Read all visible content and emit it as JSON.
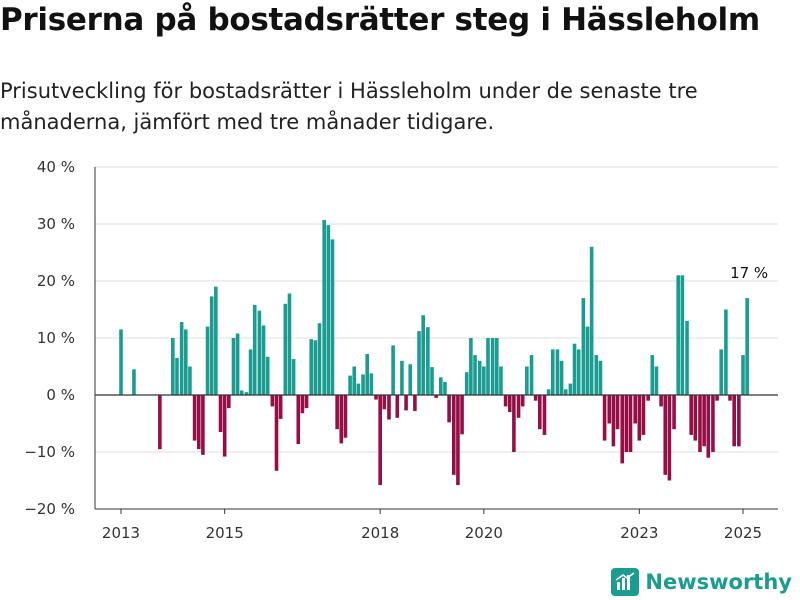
{
  "title": "Priserna på bostadsrätter steg i Hässleholm",
  "subtitle": "Prisutveckling för bostadsrätter i Hässleholm under de senaste tre månaderna, jämfört med tre månader tidigare.",
  "brand": {
    "name": "Newsworthy",
    "color": "#1a9c91"
  },
  "chart_data": {
    "type": "bar",
    "unit": "%",
    "y_ticks": [
      "40 %",
      "30 %",
      "20 %",
      "10 %",
      "0 %",
      "−10 %",
      "−20 %"
    ],
    "ylim": [
      -20,
      40
    ],
    "x_ticks": [
      "2013",
      "2015",
      "2018",
      "2020",
      "2023",
      "2025"
    ],
    "x_tick_years": [
      2013,
      2015,
      2018,
      2020,
      2023,
      2025
    ],
    "annotation": "17 %",
    "colors": {
      "positive": "#1a9c91",
      "negative": "#960e46",
      "axis": "#333333",
      "grid": "#dddddd"
    },
    "bars": [
      {
        "x": 2013.0,
        "value": 11.5
      },
      {
        "x": 2013.25,
        "value": 4.5
      },
      {
        "x": 2013.75,
        "value": -9.5
      },
      {
        "x": 2014.0,
        "value": 10.0
      },
      {
        "x": 2014.08,
        "value": 6.5
      },
      {
        "x": 2014.17,
        "value": 12.8
      },
      {
        "x": 2014.25,
        "value": 11.5
      },
      {
        "x": 2014.33,
        "value": 5.0
      },
      {
        "x": 2014.42,
        "value": -8.0
      },
      {
        "x": 2014.5,
        "value": -9.5
      },
      {
        "x": 2014.58,
        "value": -10.5
      },
      {
        "x": 2014.67,
        "value": 12.0
      },
      {
        "x": 2014.75,
        "value": 17.3
      },
      {
        "x": 2014.83,
        "value": 19.0
      },
      {
        "x": 2014.92,
        "value": -6.5
      },
      {
        "x": 2015.0,
        "value": -10.8
      },
      {
        "x": 2015.08,
        "value": -2.3
      },
      {
        "x": 2015.17,
        "value": 10.0
      },
      {
        "x": 2015.25,
        "value": 10.8
      },
      {
        "x": 2015.33,
        "value": 0.8
      },
      {
        "x": 2015.42,
        "value": 0.5
      },
      {
        "x": 2015.5,
        "value": 8.0
      },
      {
        "x": 2015.58,
        "value": 15.8
      },
      {
        "x": 2015.67,
        "value": 14.8
      },
      {
        "x": 2015.75,
        "value": 12.2
      },
      {
        "x": 2015.83,
        "value": 6.7
      },
      {
        "x": 2015.92,
        "value": -2.0
      },
      {
        "x": 2016.0,
        "value": -13.3
      },
      {
        "x": 2016.08,
        "value": -4.2
      },
      {
        "x": 2016.17,
        "value": 16.0
      },
      {
        "x": 2016.25,
        "value": 17.8
      },
      {
        "x": 2016.33,
        "value": 6.3
      },
      {
        "x": 2016.42,
        "value": -8.6
      },
      {
        "x": 2016.5,
        "value": -3.2
      },
      {
        "x": 2016.58,
        "value": -2.3
      },
      {
        "x": 2016.67,
        "value": 9.8
      },
      {
        "x": 2016.75,
        "value": 9.6
      },
      {
        "x": 2016.83,
        "value": 12.6
      },
      {
        "x": 2016.92,
        "value": 30.7
      },
      {
        "x": 2017.0,
        "value": 29.8
      },
      {
        "x": 2017.08,
        "value": 27.3
      },
      {
        "x": 2017.17,
        "value": -6.0
      },
      {
        "x": 2017.25,
        "value": -8.5
      },
      {
        "x": 2017.33,
        "value": -7.5
      },
      {
        "x": 2017.42,
        "value": 3.4
      },
      {
        "x": 2017.5,
        "value": 5.0
      },
      {
        "x": 2017.58,
        "value": 2.0
      },
      {
        "x": 2017.67,
        "value": 3.6
      },
      {
        "x": 2017.75,
        "value": 7.2
      },
      {
        "x": 2017.83,
        "value": 3.8
      },
      {
        "x": 2017.92,
        "value": -0.8
      },
      {
        "x": 2018.0,
        "value": -15.8
      },
      {
        "x": 2018.08,
        "value": -2.5
      },
      {
        "x": 2018.17,
        "value": -4.3
      },
      {
        "x": 2018.25,
        "value": 8.7
      },
      {
        "x": 2018.33,
        "value": -4.0
      },
      {
        "x": 2018.42,
        "value": 6.0
      },
      {
        "x": 2018.5,
        "value": -2.7
      },
      {
        "x": 2018.58,
        "value": 5.4
      },
      {
        "x": 2018.67,
        "value": -2.8
      },
      {
        "x": 2018.75,
        "value": 11.2
      },
      {
        "x": 2018.83,
        "value": 14.0
      },
      {
        "x": 2018.92,
        "value": 11.9
      },
      {
        "x": 2019.0,
        "value": 4.9
      },
      {
        "x": 2019.08,
        "value": -0.5
      },
      {
        "x": 2019.17,
        "value": 3.1
      },
      {
        "x": 2019.25,
        "value": 2.3
      },
      {
        "x": 2019.33,
        "value": -4.8
      },
      {
        "x": 2019.42,
        "value": -14.0
      },
      {
        "x": 2019.5,
        "value": -15.8
      },
      {
        "x": 2019.58,
        "value": -6.9
      },
      {
        "x": 2019.67,
        "value": 4.0
      },
      {
        "x": 2019.75,
        "value": 10.0
      },
      {
        "x": 2019.83,
        "value": 7.0
      },
      {
        "x": 2019.92,
        "value": 6.0
      },
      {
        "x": 2020.0,
        "value": 5.0
      },
      {
        "x": 2020.08,
        "value": 10.0
      },
      {
        "x": 2020.17,
        "value": 10.0
      },
      {
        "x": 2020.25,
        "value": 10.0
      },
      {
        "x": 2020.33,
        "value": 5.0
      },
      {
        "x": 2020.42,
        "value": -2.0
      },
      {
        "x": 2020.5,
        "value": -3.0
      },
      {
        "x": 2020.58,
        "value": -10.0
      },
      {
        "x": 2020.67,
        "value": -4.0
      },
      {
        "x": 2020.75,
        "value": -2.0
      },
      {
        "x": 2020.83,
        "value": 5.0
      },
      {
        "x": 2020.92,
        "value": 7.0
      },
      {
        "x": 2021.0,
        "value": -1.0
      },
      {
        "x": 2021.08,
        "value": -6.0
      },
      {
        "x": 2021.17,
        "value": -7.0
      },
      {
        "x": 2021.25,
        "value": 1.0
      },
      {
        "x": 2021.33,
        "value": 8.0
      },
      {
        "x": 2021.42,
        "value": 8.0
      },
      {
        "x": 2021.5,
        "value": 6.0
      },
      {
        "x": 2021.58,
        "value": 1.0
      },
      {
        "x": 2021.67,
        "value": 2.0
      },
      {
        "x": 2021.75,
        "value": 9.0
      },
      {
        "x": 2021.83,
        "value": 8.0
      },
      {
        "x": 2021.92,
        "value": 17.0
      },
      {
        "x": 2022.0,
        "value": 12.0
      },
      {
        "x": 2022.08,
        "value": 26.0
      },
      {
        "x": 2022.17,
        "value": 7.0
      },
      {
        "x": 2022.25,
        "value": 6.0
      },
      {
        "x": 2022.33,
        "value": -8.0
      },
      {
        "x": 2022.42,
        "value": -5.0
      },
      {
        "x": 2022.5,
        "value": -9.0
      },
      {
        "x": 2022.58,
        "value": -6.0
      },
      {
        "x": 2022.67,
        "value": -12.0
      },
      {
        "x": 2022.75,
        "value": -10.0
      },
      {
        "x": 2022.83,
        "value": -10.0
      },
      {
        "x": 2022.92,
        "value": -5.0
      },
      {
        "x": 2023.0,
        "value": -8.0
      },
      {
        "x": 2023.08,
        "value": -7.0
      },
      {
        "x": 2023.17,
        "value": -1.0
      },
      {
        "x": 2023.25,
        "value": 7.0
      },
      {
        "x": 2023.33,
        "value": 5.0
      },
      {
        "x": 2023.42,
        "value": -2.0
      },
      {
        "x": 2023.5,
        "value": -14.0
      },
      {
        "x": 2023.58,
        "value": -15.0
      },
      {
        "x": 2023.67,
        "value": -6.0
      },
      {
        "x": 2023.75,
        "value": 21.0
      },
      {
        "x": 2023.83,
        "value": 21.0
      },
      {
        "x": 2023.92,
        "value": 13.0
      },
      {
        "x": 2024.0,
        "value": -7.0
      },
      {
        "x": 2024.08,
        "value": -8.0
      },
      {
        "x": 2024.17,
        "value": -10.0
      },
      {
        "x": 2024.25,
        "value": -9.0
      },
      {
        "x": 2024.33,
        "value": -11.0
      },
      {
        "x": 2024.42,
        "value": -10.0
      },
      {
        "x": 2024.5,
        "value": -1.0
      },
      {
        "x": 2024.58,
        "value": 8.0
      },
      {
        "x": 2024.67,
        "value": 15.0
      },
      {
        "x": 2024.75,
        "value": -1.0
      },
      {
        "x": 2024.83,
        "value": -9.0
      },
      {
        "x": 2024.92,
        "value": -9.0
      },
      {
        "x": 2025.0,
        "value": 7.0
      },
      {
        "x": 2025.08,
        "value": 17.0
      }
    ]
  }
}
